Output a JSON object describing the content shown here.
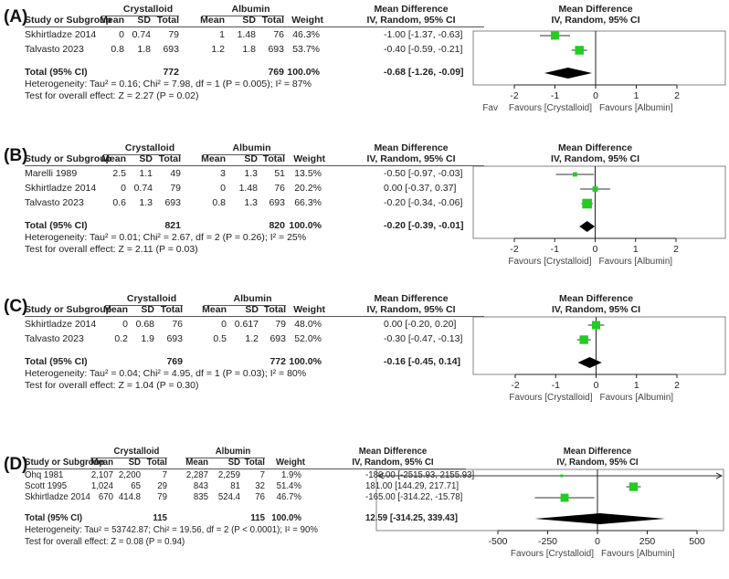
{
  "meta": {
    "green": "#22cc22",
    "line": "#333333"
  },
  "header": {
    "study": "Study or Subgroup",
    "mean": "Mean",
    "sd": "SD",
    "total": "Total",
    "weight": "Weight",
    "group1": "Crystalloid",
    "group2": "Albumin",
    "md": "Mean Difference",
    "md_sub": "IV, Random, 95% CI",
    "total_row": "Total (95% CI)"
  },
  "chart_data": [
    {
      "type": "forest",
      "label": "(A)",
      "studies": [
        {
          "name": "Skhirtladze 2014",
          "m1": "0",
          "sd1": "0.74",
          "n1": "79",
          "m2": "1",
          "sd2": "1.48",
          "n2": "76",
          "weight": "46.3%",
          "ci_text": "-1.00 [-1.37, -0.63]",
          "est": -1.0,
          "lo": -1.37,
          "hi": -0.63,
          "w": 46.3
        },
        {
          "name": "Talvasto 2023",
          "m1": "0.8",
          "sd1": "1.8",
          "n1": "693",
          "m2": "1.2",
          "sd2": "1.8",
          "n2": "693",
          "weight": "53.7%",
          "ci_text": "-0.40 [-0.59, -0.21]",
          "est": -0.4,
          "lo": -0.59,
          "hi": -0.21,
          "w": 53.7
        }
      ],
      "total": {
        "n1": "772",
        "n2": "769",
        "weight": "100.0%",
        "ci_text": "-0.68 [-1.26, -0.09]",
        "est": -0.68,
        "lo": -1.26,
        "hi": -0.09
      },
      "heterogeneity": "Heterogeneity: Tau² = 0.16; Chi² = 7.98, df = 1 (P = 0.005); I² = 87%",
      "overall": "Test for overall effect: Z = 2.27 (P = 0.02)",
      "xlim": [
        -2,
        2
      ],
      "ticks": [
        "-2",
        "-1",
        "0",
        "1",
        "2"
      ],
      "tick_values": [
        -2,
        -1,
        0,
        1,
        2
      ],
      "fav_left": "Favours [Crystalloid]",
      "fav_right": "Favours [Albumin]",
      "fav_ghost": "Fav"
    },
    {
      "type": "forest",
      "label": "(B)",
      "studies": [
        {
          "name": "Marelli 1989",
          "m1": "2.5",
          "sd1": "1.1",
          "n1": "49",
          "m2": "3",
          "sd2": "1.3",
          "n2": "51",
          "weight": "13.5%",
          "ci_text": "-0.50 [-0.97, -0.03]",
          "est": -0.5,
          "lo": -0.97,
          "hi": -0.03,
          "w": 13.5
        },
        {
          "name": "Skhirtladze 2014",
          "m1": "0",
          "sd1": "0.74",
          "n1": "79",
          "m2": "0",
          "sd2": "1.48",
          "n2": "76",
          "weight": "20.2%",
          "ci_text": "0.00 [-0.37, 0.37]",
          "est": 0.0,
          "lo": -0.37,
          "hi": 0.37,
          "w": 20.2
        },
        {
          "name": "Talvasto 2023",
          "m1": "0.6",
          "sd1": "1.3",
          "n1": "693",
          "m2": "0.8",
          "sd2": "1.3",
          "n2": "693",
          "weight": "66.3%",
          "ci_text": "-0.20 [-0.34, -0.06]",
          "est": -0.2,
          "lo": -0.34,
          "hi": -0.06,
          "w": 66.3
        }
      ],
      "total": {
        "n1": "821",
        "n2": "820",
        "weight": "100.0%",
        "ci_text": "-0.20 [-0.39, -0.01]",
        "est": -0.2,
        "lo": -0.39,
        "hi": -0.01
      },
      "heterogeneity": "Heterogeneity: Tau² = 0.01; Chi² = 2.67, df = 2 (P = 0.26); I² = 25%",
      "overall": "Test for overall effect: Z = 2.11 (P = 0.03)",
      "xlim": [
        -2,
        2
      ],
      "ticks": [
        "-2",
        "-1",
        "0",
        "1",
        "2"
      ],
      "tick_values": [
        -2,
        -1,
        0,
        1,
        2
      ],
      "fav_left": "Favours [Crystalloid]",
      "fav_right": "Favours [Albumin]"
    },
    {
      "type": "forest",
      "label": "(C)",
      "studies": [
        {
          "name": "Skhirtladze 2014",
          "m1": "0",
          "sd1": "0.68",
          "n1": "76",
          "m2": "0",
          "sd2": "0.617",
          "n2": "79",
          "weight": "48.0%",
          "ci_text": "0.00 [-0.20, 0.20]",
          "est": 0.0,
          "lo": -0.2,
          "hi": 0.2,
          "w": 48.0
        },
        {
          "name": "Talvasto 2023",
          "m1": "0.2",
          "sd1": "1.9",
          "n1": "693",
          "m2": "0.5",
          "sd2": "1.2",
          "n2": "693",
          "weight": "52.0%",
          "ci_text": "-0.30 [-0.47, -0.13]",
          "est": -0.3,
          "lo": -0.47,
          "hi": -0.13,
          "w": 52.0
        }
      ],
      "total": {
        "n1": "769",
        "n2": "772",
        "weight": "100.0%",
        "ci_text": "-0.16 [-0.45, 0.14]",
        "est": -0.16,
        "lo": -0.45,
        "hi": 0.14
      },
      "heterogeneity": "Heterogeneity: Tau² = 0.04; Chi² = 4.95, df = 1 (P = 0.03); I² = 80%",
      "overall": "Test for overall effect: Z = 1.04 (P = 0.30)",
      "xlim": [
        -2,
        2
      ],
      "ticks": [
        "-2",
        "-1",
        "0",
        "1",
        "2"
      ],
      "tick_values": [
        -2,
        -1,
        0,
        1,
        2
      ],
      "fav_left": "Favours [Crystalloid]",
      "fav_right": "Favours [Albumin]"
    },
    {
      "type": "forest",
      "label": "(D)",
      "studies": [
        {
          "name": "Ohq 1981",
          "m1": "2,107",
          "sd1": "2,200",
          "n1": "7",
          "m2": "2,287",
          "sd2": "2,259",
          "n2": "7",
          "weight": "1.9%",
          "ci_text": "-180.00 [-2515.93, 2155.93]",
          "est": -180.0,
          "lo": -2515.93,
          "hi": 2155.93,
          "w": 1.9
        },
        {
          "name": "Scott 1995",
          "m1": "1,024",
          "sd1": "65",
          "n1": "29",
          "m2": "843",
          "sd2": "81",
          "n2": "32",
          "weight": "51.4%",
          "ci_text": "181.00 [144.29, 217.71]",
          "est": 181.0,
          "lo": 144.29,
          "hi": 217.71,
          "w": 51.4
        },
        {
          "name": "Skhirtladze 2014",
          "m1": "670",
          "sd1": "414.8",
          "n1": "79",
          "m2": "835",
          "sd2": "524.4",
          "n2": "76",
          "weight": "46.7%",
          "ci_text": "-165.00 [-314.22, -15.78]",
          "est": -165.0,
          "lo": -314.22,
          "hi": -15.78,
          "w": 46.7
        }
      ],
      "total": {
        "n1": "115",
        "n2": "115",
        "weight": "100.0%",
        "ci_text": "12.59 [-314.25, 339.43]",
        "est": 12.59,
        "lo": -314.25,
        "hi": 339.43
      },
      "heterogeneity": "Heterogeneity: Tau² = 53742.87; Chi² = 19.56, df = 2 (P < 0.0001); I² = 90%",
      "overall": "Test for overall effect: Z = 0.08 (P = 0.94)",
      "xlim": [
        -500,
        500
      ],
      "ticks": [
        "-500",
        "-250",
        "0",
        "250",
        "500"
      ],
      "tick_values": [
        -500,
        -250,
        0,
        250,
        500
      ],
      "fav_left": "Favours [Crystalloid]",
      "fav_right": "Favours [Albumin]"
    }
  ]
}
